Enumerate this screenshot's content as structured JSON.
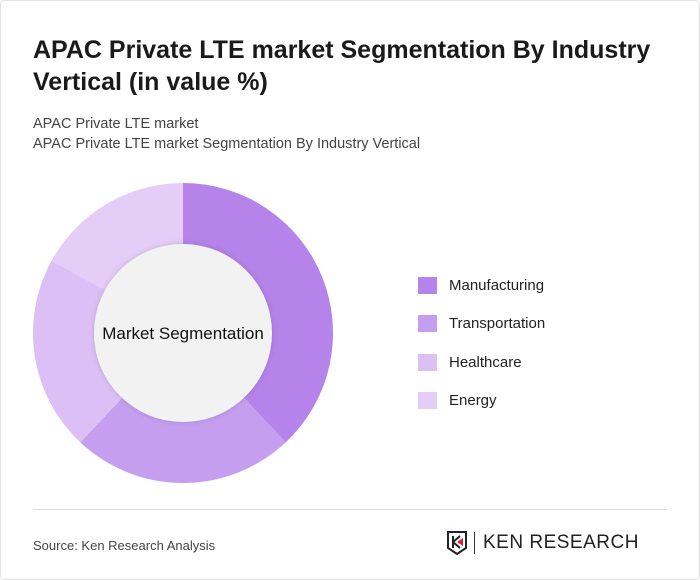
{
  "title": "APAC Private LTE market Segmentation By Industry Vertical (in value %)",
  "subtitle1": "APAC Private LTE market",
  "subtitle2": "APAC Private LTE market Segmentation By Industry Vertical",
  "source": "Source: Ken Research Analysis",
  "logo_text": "KEN RESEARCH",
  "chart_data": {
    "type": "pie",
    "variant": "donut",
    "center_label": "Market Segmentation",
    "categories": [
      "Manufacturing",
      "Transportation",
      "Healthcare",
      "Energy"
    ],
    "values": [
      38,
      24,
      21,
      17
    ],
    "colors": [
      "#b583ea",
      "#c59ef0",
      "#dcc0f5",
      "#e4cdf7"
    ],
    "legend_position": "right"
  }
}
